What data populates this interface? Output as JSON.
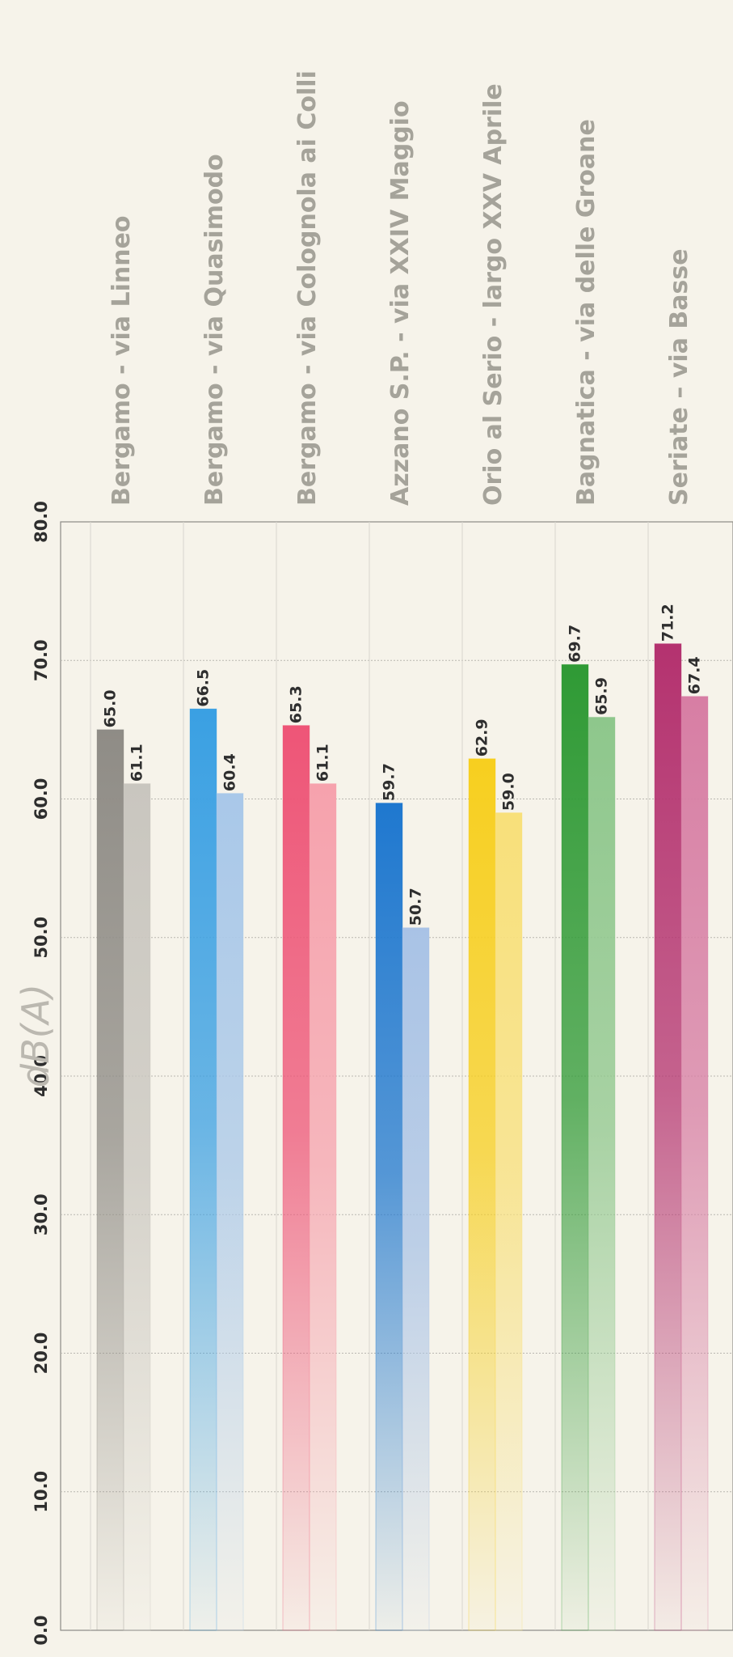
{
  "chart_data": {
    "type": "bar",
    "orientation": "rotated",
    "ylabel": "dB(A)",
    "ylim": [
      0,
      80
    ],
    "ticks": [
      "0.0",
      "10.0",
      "20.0",
      "30.0",
      "40.0",
      "50.0",
      "60.0",
      "70.0",
      "80.0"
    ],
    "grid": true,
    "categories": [
      "Bergamo - via Linneo",
      "Bergamo - via Quasimodo",
      "Bergamo - via Colognola ai Colli",
      "Azzano S.P. - via XXIV Maggio",
      "Orio al Serio - largo XXV Aprile",
      "Bagnatica - via delle Groane",
      "Seriate – via Basse"
    ],
    "series": [
      {
        "values": [
          65.0,
          66.5,
          65.3,
          59.7,
          62.9,
          69.7,
          71.2
        ],
        "labels": [
          "65.0",
          "66.5",
          "65.3",
          "59.7",
          "62.9",
          "69.7",
          "71.2"
        ]
      },
      {
        "values": [
          61.1,
          60.4,
          61.1,
          50.7,
          59.0,
          65.9,
          67.4
        ],
        "labels": [
          "61.1",
          "60.4",
          "61.1",
          "50.7",
          "59.0",
          "65.9",
          "67.4"
        ]
      }
    ],
    "colors": [
      [
        "#8f8c86",
        "#c9c6bf"
      ],
      [
        "#3aa0e3",
        "#a9c8e9"
      ],
      [
        "#ee5577",
        "#f6a2ad"
      ],
      [
        "#1f78cf",
        "#a9c3e6"
      ],
      [
        "#f7cf1f",
        "#f8e07a"
      ],
      [
        "#2f9a35",
        "#8ec78c"
      ],
      [
        "#b4326f",
        "#d77ea4"
      ]
    ],
    "label_color": "#a5a39a",
    "text_color": "#2e2e2e"
  }
}
